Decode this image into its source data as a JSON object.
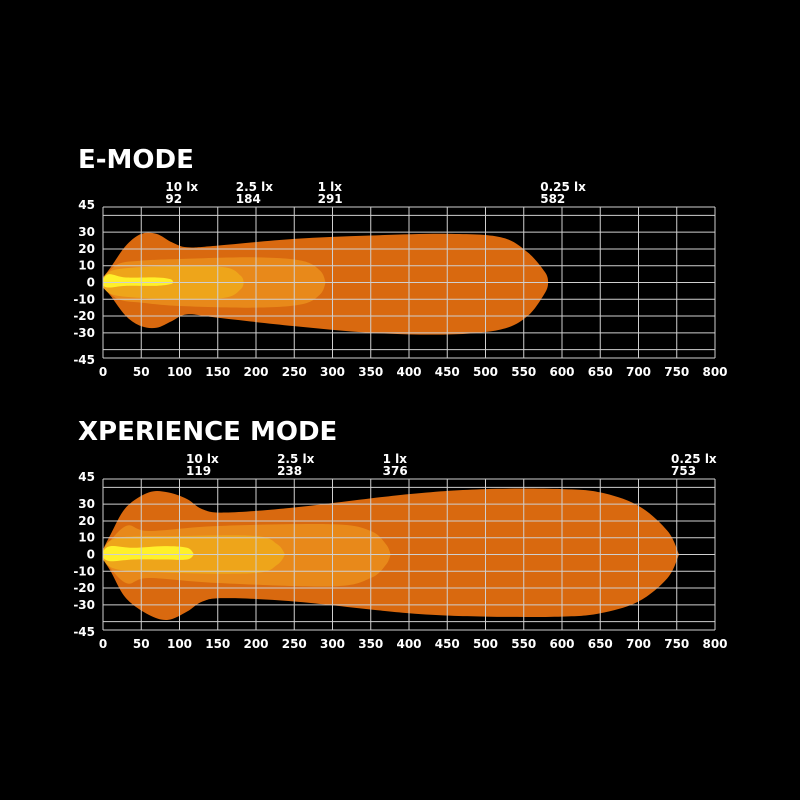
{
  "chart_data": [
    {
      "type": "area",
      "title": "E-MODE",
      "xlim": [
        0,
        800
      ],
      "ylim": [
        -45,
        45
      ],
      "x_ticks": [
        0,
        50,
        100,
        150,
        200,
        250,
        300,
        350,
        400,
        450,
        500,
        550,
        600,
        650,
        700,
        750,
        800
      ],
      "y_ticks": [
        45,
        30,
        20,
        10,
        0,
        -10,
        -20,
        -30,
        -45
      ],
      "grid": true,
      "annotations": [
        {
          "label": "10 lx",
          "value": "92",
          "x": 92
        },
        {
          "label": "2.5 lx",
          "value": "184",
          "x": 184
        },
        {
          "label": "1 lx",
          "value": "291",
          "x": 291
        },
        {
          "label": "0.25 lx",
          "value": "582",
          "x": 582
        }
      ],
      "contours": [
        {
          "level": "0.25 lx",
          "reach": 582,
          "color": "#d9690f",
          "points": [
            [
              0,
              3,
              -3
            ],
            [
              10,
              9,
              -8
            ],
            [
              30,
              22,
              -20
            ],
            [
              50,
              29,
              -26
            ],
            [
              70,
              29,
              -27
            ],
            [
              90,
              24,
              -23
            ],
            [
              110,
              21,
              -19
            ],
            [
              150,
              22,
              -21
            ],
            [
              250,
              26,
              -26
            ],
            [
              350,
              28,
              -30
            ],
            [
              450,
              29,
              -31
            ],
            [
              520,
              27,
              -28
            ],
            [
              555,
              18,
              -20
            ],
            [
              578,
              6,
              -6
            ],
            [
              582,
              0,
              0
            ]
          ]
        },
        {
          "level": "1 lx",
          "reach": 291,
          "color": "#e8891a",
          "points": [
            [
              0,
              3,
              -3
            ],
            [
              20,
              11,
              -10
            ],
            [
              50,
              13,
              -12
            ],
            [
              100,
              14,
              -14
            ],
            [
              200,
              15,
              -15
            ],
            [
              260,
              13,
              -13
            ],
            [
              284,
              7,
              -7
            ],
            [
              291,
              0,
              0
            ]
          ]
        },
        {
          "level": "2.5 lx",
          "reach": 184,
          "color": "#eea51a",
          "points": [
            [
              0,
              3,
              -3
            ],
            [
              20,
              8,
              -8
            ],
            [
              100,
              10,
              -10
            ],
            [
              160,
              9,
              -9
            ],
            [
              180,
              4,
              -4
            ],
            [
              184,
              0,
              0
            ]
          ]
        },
        {
          "level": "10 lx",
          "reach": 92,
          "color": "#fff02a",
          "points": [
            [
              0,
              2,
              -2
            ],
            [
              8,
              5,
              -3
            ],
            [
              30,
              3,
              -2
            ],
            [
              70,
              3,
              -2
            ],
            [
              88,
              2,
              -1
            ],
            [
              92,
              0,
              0
            ]
          ]
        }
      ]
    },
    {
      "type": "area",
      "title": "XPERIENCE MODE",
      "xlim": [
        0,
        800
      ],
      "ylim": [
        -45,
        45
      ],
      "x_ticks": [
        0,
        50,
        100,
        150,
        200,
        250,
        300,
        350,
        400,
        450,
        500,
        550,
        600,
        650,
        700,
        750,
        800
      ],
      "y_ticks": [
        45,
        30,
        20,
        10,
        0,
        -10,
        -20,
        -30,
        -45
      ],
      "grid": true,
      "annotations": [
        {
          "label": "10 lx",
          "value": "119",
          "x": 119
        },
        {
          "label": "2.5 lx",
          "value": "238",
          "x": 238
        },
        {
          "label": "1 lx",
          "value": "376",
          "x": 376
        },
        {
          "label": "0.25 lx",
          "value": "753",
          "x": 753
        }
      ],
      "contours": [
        {
          "level": "0.25 lx",
          "reach": 753,
          "color": "#d9690f",
          "points": [
            [
              0,
              3,
              -3
            ],
            [
              10,
              12,
              -10
            ],
            [
              30,
              28,
              -26
            ],
            [
              60,
              37,
              -36
            ],
            [
              85,
              37,
              -39
            ],
            [
              110,
              33,
              -34
            ],
            [
              130,
              27,
              -28
            ],
            [
              160,
              25,
              -26
            ],
            [
              250,
              28,
              -28
            ],
            [
              400,
              36,
              -35
            ],
            [
              500,
              39,
              -37
            ],
            [
              600,
              39,
              -37
            ],
            [
              650,
              37,
              -35
            ],
            [
              700,
              29,
              -28
            ],
            [
              738,
              14,
              -14
            ],
            [
              753,
              0,
              0
            ]
          ]
        },
        {
          "level": "1 lx",
          "reach": 376,
          "color": "#e8891a",
          "points": [
            [
              0,
              3,
              -3
            ],
            [
              30,
              17,
              -17
            ],
            [
              60,
              14,
              -14
            ],
            [
              150,
              17,
              -17
            ],
            [
              300,
              18,
              -19
            ],
            [
              350,
              14,
              -14
            ],
            [
              370,
              6,
              -6
            ],
            [
              376,
              0,
              0
            ]
          ]
        },
        {
          "level": "2.5 lx",
          "reach": 238,
          "color": "#eea51a",
          "points": [
            [
              0,
              3,
              -3
            ],
            [
              20,
              10,
              -9
            ],
            [
              100,
              11,
              -11
            ],
            [
              200,
              11,
              -11
            ],
            [
              228,
              6,
              -6
            ],
            [
              238,
              0,
              0
            ]
          ]
        },
        {
          "level": "10 lx",
          "reach": 119,
          "color": "#fff02a",
          "points": [
            [
              0,
              2,
              -2
            ],
            [
              10,
              5,
              -4
            ],
            [
              40,
              4,
              -3
            ],
            [
              80,
              5,
              -3
            ],
            [
              110,
              4,
              -3
            ],
            [
              119,
              0,
              0
            ]
          ]
        }
      ]
    }
  ]
}
